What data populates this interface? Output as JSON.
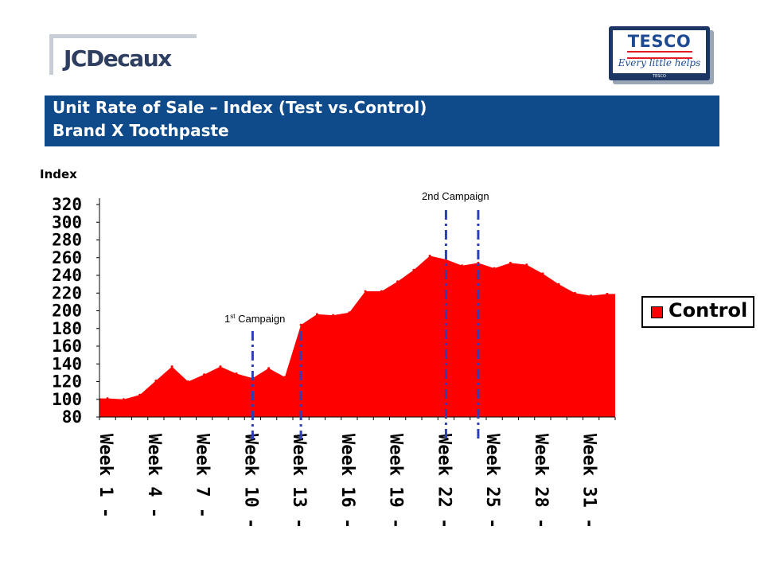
{
  "logos": {
    "left_brand": "JCDecaux",
    "right_brand": "TESCO",
    "right_tagline": "Every little helps",
    "right_small": "TESCO"
  },
  "title": {
    "line1": "Unit Rate of Sale – Index (Test vs.Control)",
    "line2": "Brand X Toothpaste"
  },
  "colors": {
    "title_bg": "#0f4a8a",
    "series": "#ff0000",
    "campaign_line": "#2e3fb5"
  },
  "chart_data": {
    "type": "area",
    "ylabel": "Index",
    "ylim": [
      80,
      320
    ],
    "yticks": [
      80,
      100,
      120,
      140,
      160,
      180,
      200,
      220,
      240,
      260,
      280,
      300,
      320
    ],
    "x_tick_labels": [
      "Week 1 -",
      "Week 4 -",
      "Week 7 -",
      "Week 10 -",
      "Week 13 -",
      "Week 16 -",
      "Week 19 -",
      "Week 22 -",
      "Week 25 -",
      "Week 28 -",
      "Week 31 -"
    ],
    "x_tick_weeks": [
      1,
      4,
      7,
      10,
      13,
      16,
      19,
      22,
      25,
      28,
      31
    ],
    "legend": {
      "placement": "right",
      "entries": [
        "Control"
      ]
    },
    "series": [
      {
        "name": "Control",
        "x": [
          1,
          2,
          3,
          4,
          5,
          6,
          7,
          8,
          9,
          10,
          11,
          12,
          13,
          14,
          15,
          16,
          17,
          18,
          19,
          20,
          21,
          22,
          23,
          24,
          25,
          26,
          27,
          28,
          29,
          30,
          31,
          32
        ],
        "values": [
          101,
          100,
          105,
          121,
          137,
          120,
          128,
          137,
          129,
          124,
          135,
          125,
          184,
          196,
          195,
          198,
          222,
          222,
          233,
          246,
          262,
          258,
          251,
          254,
          248,
          254,
          252,
          242,
          230,
          220,
          217,
          219
        ]
      }
    ],
    "annotations": [
      {
        "text": "1st Campaign",
        "base": "1",
        "sup": "st",
        "rest": " Campaign",
        "weeks": [
          9.5,
          12.5
        ]
      },
      {
        "text": "2nd Campaign",
        "base": "2nd Campaign",
        "sup": "",
        "rest": "",
        "weeks": [
          21.5,
          23.5
        ]
      }
    ]
  }
}
